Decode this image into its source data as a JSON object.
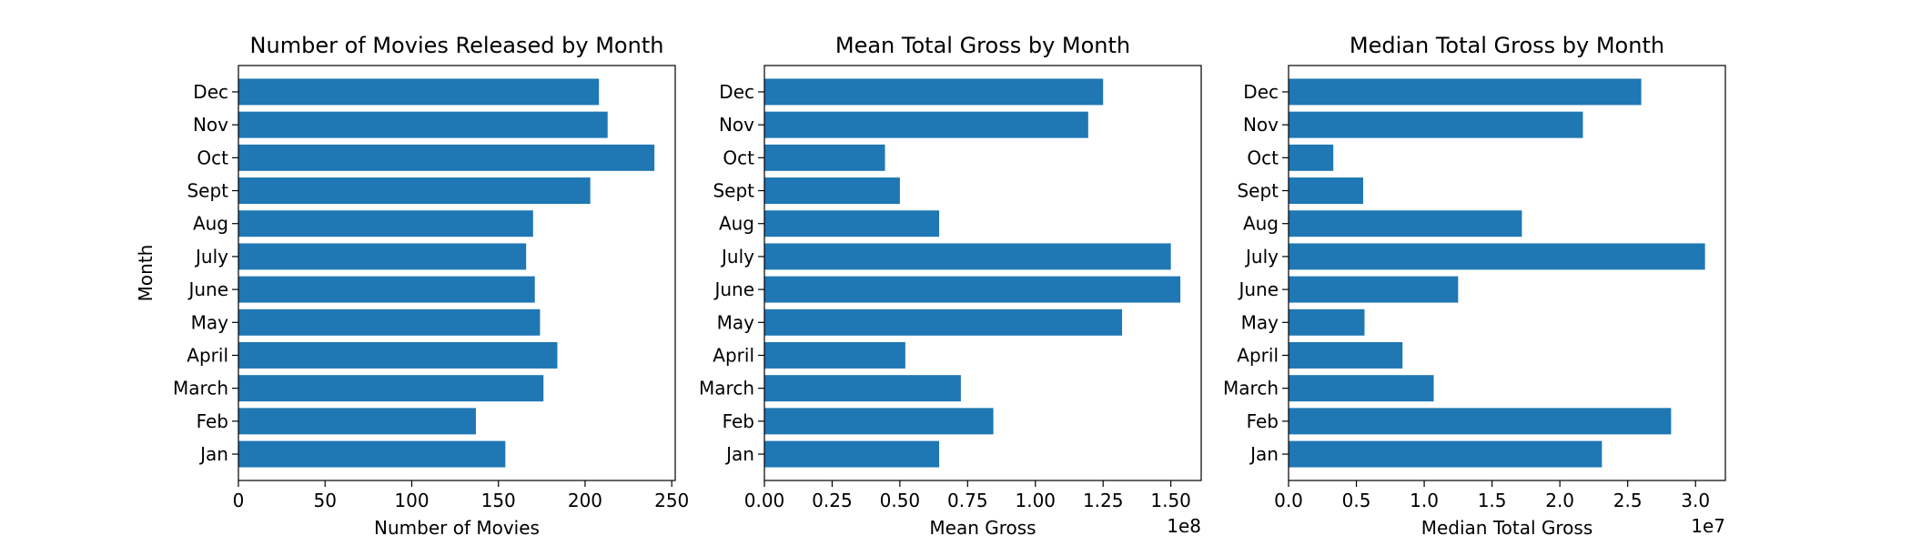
{
  "chart_data": [
    {
      "type": "bar",
      "orientation": "horizontal",
      "title": "Number of Movies Released by Month",
      "xlabel": "Number of Movies",
      "ylabel": "Month",
      "categories": [
        "Jan",
        "Feb",
        "March",
        "April",
        "May",
        "June",
        "July",
        "Aug",
        "Sept",
        "Oct",
        "Nov",
        "Dec"
      ],
      "values": [
        154,
        137,
        176,
        184,
        174,
        171,
        166,
        170,
        203,
        240,
        213,
        208
      ],
      "xlim": [
        0,
        252
      ],
      "xticks": [
        0,
        50,
        100,
        150,
        200,
        250
      ],
      "xtick_labels": [
        "0",
        "50",
        "100",
        "150",
        "200",
        "250"
      ],
      "offset_text": "",
      "color": "#1f77b4",
      "grid": false
    },
    {
      "type": "bar",
      "orientation": "horizontal",
      "title": "Mean Total Gross by Month",
      "xlabel": "Mean Gross",
      "ylabel": "",
      "categories": [
        "Jan",
        "Feb",
        "March",
        "April",
        "May",
        "June",
        "July",
        "Aug",
        "Sept",
        "Oct",
        "Nov",
        "Dec"
      ],
      "values": [
        64500000,
        84500000,
        72500000,
        52000000,
        132000000,
        153500000,
        150000000,
        64500000,
        50000000,
        44500000,
        119500000,
        125000000
      ],
      "xlim": [
        0,
        161200000
      ],
      "xticks": [
        0,
        25000000,
        50000000,
        75000000,
        100000000,
        125000000,
        150000000
      ],
      "xtick_labels": [
        "0.00",
        "0.25",
        "0.50",
        "0.75",
        "1.00",
        "1.25",
        "1.50"
      ],
      "offset_text": "1e8",
      "color": "#1f77b4",
      "grid": false
    },
    {
      "type": "bar",
      "orientation": "horizontal",
      "title": "Median Total Gross by Month",
      "xlabel": "Median Total Gross",
      "ylabel": "",
      "categories": [
        "Jan",
        "Feb",
        "March",
        "April",
        "May",
        "June",
        "July",
        "Aug",
        "Sept",
        "Oct",
        "Nov",
        "Dec"
      ],
      "values": [
        23100000,
        28200000,
        10700000,
        8400000,
        5600000,
        12500000,
        30700000,
        17200000,
        5500000,
        3300000,
        21700000,
        26000000
      ],
      "xlim": [
        0,
        32200000
      ],
      "xticks": [
        0,
        5000000,
        10000000,
        15000000,
        20000000,
        25000000,
        30000000
      ],
      "xtick_labels": [
        "0.0",
        "0.5",
        "1.0",
        "1.5",
        "2.0",
        "2.5",
        "3.0"
      ],
      "offset_text": "1e7",
      "color": "#1f77b4",
      "grid": false
    }
  ]
}
